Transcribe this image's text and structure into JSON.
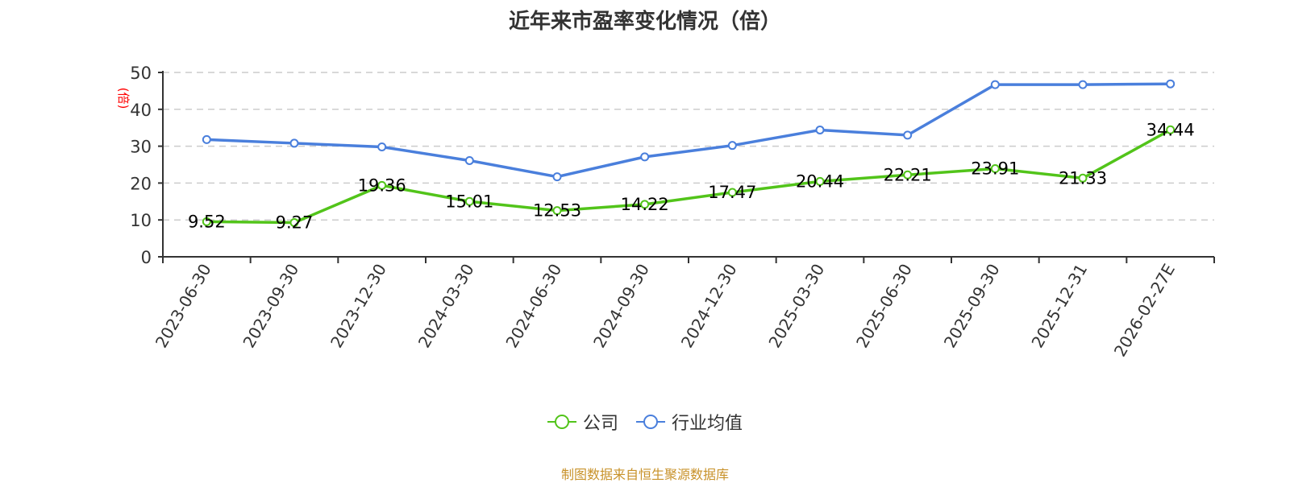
{
  "chart_data": {
    "type": "line",
    "title": "近年来市盈率变化情况（倍）",
    "ylabel": "(倍)",
    "xlabel": "",
    "ylim": [
      0,
      50
    ],
    "yticks": [
      0,
      10,
      20,
      30,
      40,
      50
    ],
    "grid": true,
    "legend_position": "bottom",
    "categories": [
      "2023-06-30",
      "2023-09-30",
      "2023-12-30",
      "2024-03-30",
      "2024-06-30",
      "2024-09-30",
      "2024-12-30",
      "2025-03-30",
      "2025-06-30",
      "2025-09-30",
      "2025-12-31",
      "2026-02-27E"
    ],
    "series": [
      {
        "name": "公司",
        "color": "#52c41a",
        "values": [
          9.52,
          9.27,
          19.36,
          15.01,
          12.53,
          14.22,
          17.47,
          20.44,
          22.21,
          23.91,
          21.33,
          34.44
        ],
        "labels_shown": true
      },
      {
        "name": "行业均值",
        "color": "#4a7fdc",
        "values": [
          31.8,
          30.8,
          29.8,
          26.1,
          21.7,
          27.1,
          30.2,
          34.4,
          33.0,
          46.7,
          46.7,
          46.9
        ],
        "labels_shown": false
      }
    ],
    "source": "制图数据来自恒生聚源数据库"
  },
  "title": "近年来市盈率变化情况（倍）",
  "legend": {
    "company": "公司",
    "industry": "行业均值"
  },
  "source": "制图数据来自恒生聚源数据库"
}
